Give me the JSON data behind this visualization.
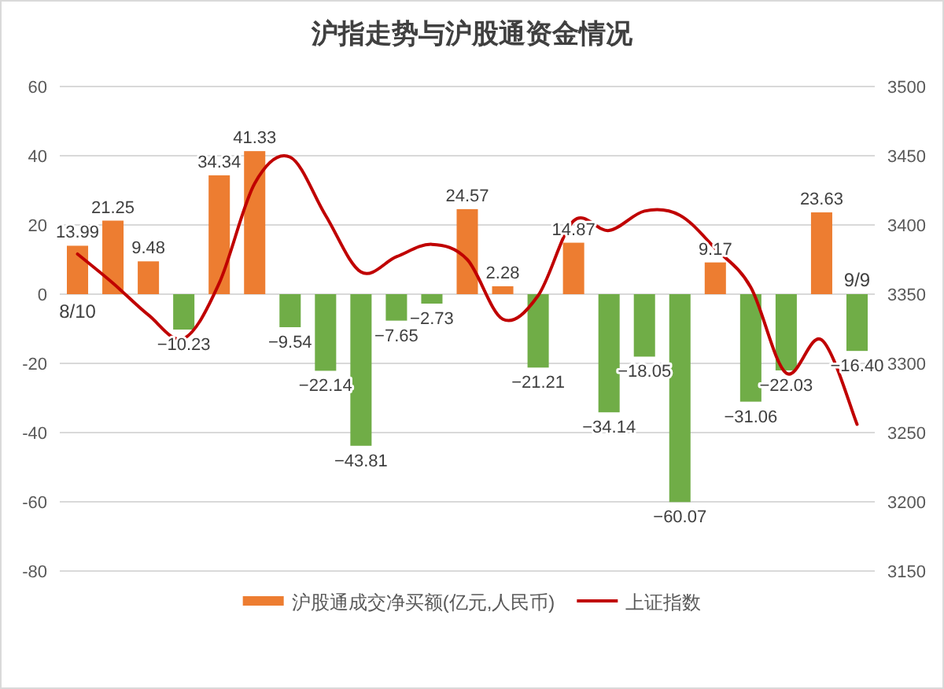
{
  "chart_data": {
    "type": "bar",
    "title": "沪指走势与沪股通资金情况",
    "categories": [
      "8/10",
      null,
      null,
      null,
      null,
      null,
      null,
      null,
      null,
      null,
      null,
      null,
      null,
      null,
      null,
      null,
      null,
      null,
      null,
      null,
      null,
      null,
      "9/9"
    ],
    "series": [
      {
        "name": "沪股通成交净买额(亿元,人民币)",
        "type": "bar",
        "color": "#ed7d31",
        "colors": [
          "#ed7d31",
          "#ed7d31",
          "#ed7d31",
          "#70ad47",
          "#ed7d31",
          "#ed7d31",
          "#70ad47",
          "#70ad47",
          "#70ad47",
          "#70ad47",
          "#70ad47",
          "#ed7d31",
          "#ed7d31",
          "#70ad47",
          "#ed7d31",
          "#70ad47",
          "#70ad47",
          "#70ad47",
          "#ed7d31",
          "#70ad47",
          "#70ad47",
          "#ed7d31",
          "#70ad47"
        ],
        "values": [
          13.99,
          21.25,
          9.48,
          -10.23,
          34.34,
          41.33,
          -9.54,
          -22.14,
          -43.81,
          -7.65,
          -2.73,
          24.57,
          2.28,
          -21.21,
          14.87,
          -34.14,
          -18.05,
          -60.07,
          9.17,
          -31.06,
          -22.03,
          23.63,
          -16.4
        ],
        "value_labels": [
          "13.99",
          "21.25",
          "9.48",
          "−10.23",
          "34.34",
          "41.33",
          "−9.54",
          "−22.14",
          "−43.81",
          "−7.65",
          "−2.73",
          "24.57",
          "2.28",
          "−21.21",
          "14.87",
          "−34.14",
          "−18.05",
          "−60.07",
          "9.17",
          "−31.06",
          "−22.03",
          "23.63",
          "−16.40"
        ]
      },
      {
        "name": "上证指数",
        "type": "line",
        "axis": "y2",
        "color": "#c00000",
        "values": [
          3379,
          3358,
          3335,
          3318,
          3358,
          3430,
          3449,
          3407,
          3366,
          3377,
          3386,
          3375,
          3332,
          3349,
          3403,
          3396,
          3410,
          3407,
          3383,
          3355,
          3293,
          3317,
          3256
        ]
      }
    ],
    "ylim": [
      -80,
      60
    ],
    "yticks": [
      -80,
      -60,
      -40,
      -20,
      0,
      20,
      40,
      60
    ],
    "y2lim": [
      3150,
      3500
    ],
    "y2ticks": [
      3150,
      3200,
      3250,
      3300,
      3350,
      3400,
      3450,
      3500
    ],
    "grid": "y",
    "legend": "bottom"
  }
}
